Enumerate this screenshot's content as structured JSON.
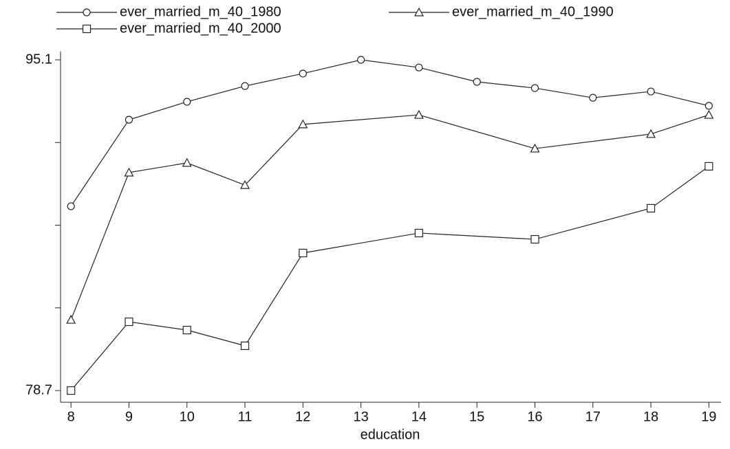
{
  "chart_data": {
    "type": "line",
    "x_label": "education",
    "series": [
      {
        "name": "ever_married_m_40_1980",
        "marker": "circle",
        "color": "#222222",
        "x": [
          8,
          9,
          10,
          11,
          12,
          13,
          14,
          15,
          16,
          17,
          18,
          19
        ],
        "values": [
          87.84,
          92.13,
          93.02,
          93.8,
          94.42,
          95.1,
          94.72,
          94.01,
          93.7,
          93.22,
          93.53,
          92.82
        ]
      },
      {
        "name": "ever_married_m_40_1990",
        "marker": "triangle",
        "color": "#222222",
        "x": [
          8,
          9,
          10,
          11,
          12,
          14,
          16,
          18,
          19
        ],
        "values": [
          82.21,
          89.51,
          89.99,
          88.89,
          91.9,
          92.37,
          90.7,
          91.42,
          92.37
        ]
      },
      {
        "name": "ever_married_m_40_2000",
        "marker": "square",
        "color": "#222222",
        "x": [
          8,
          9,
          10,
          11,
          12,
          14,
          16,
          18,
          19
        ],
        "values": [
          78.7,
          82.11,
          81.7,
          80.92,
          85.52,
          86.51,
          86.2,
          87.74,
          89.82
        ]
      }
    ],
    "xlim": [
      7.82,
      19.21
    ],
    "xticks": [
      8,
      9,
      10,
      11,
      12,
      13,
      14,
      15,
      16,
      17,
      18,
      19
    ],
    "ylim": [
      78.12,
      95.51
    ],
    "yticks": [
      78.7,
      95.1
    ],
    "yticks_minor": [
      82.8,
      86.9,
      91.0
    ],
    "grid": false,
    "legend": "top"
  }
}
